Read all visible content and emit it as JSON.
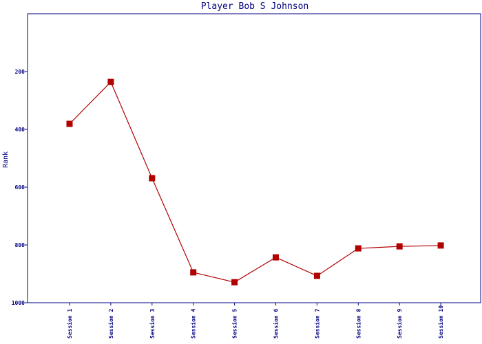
{
  "chart_data": {
    "type": "line",
    "title": "Player Bob S Johnson",
    "y_label": "Rank",
    "categories": [
      "Session 1",
      "Session 2",
      "Session 3",
      "Session 4",
      "Session 5",
      "Session 6",
      "Session 7",
      "Session 8",
      "Session 9",
      "Session 10"
    ],
    "series": [
      {
        "name": "Rank",
        "color": "#b00000",
        "values": [
          381,
          236,
          569,
          895,
          929,
          843,
          907,
          812,
          805,
          802
        ]
      }
    ],
    "ylim": [
      0,
      1000
    ],
    "y_inverted": true,
    "yticks": [
      200,
      400,
      600,
      800,
      1000
    ]
  }
}
